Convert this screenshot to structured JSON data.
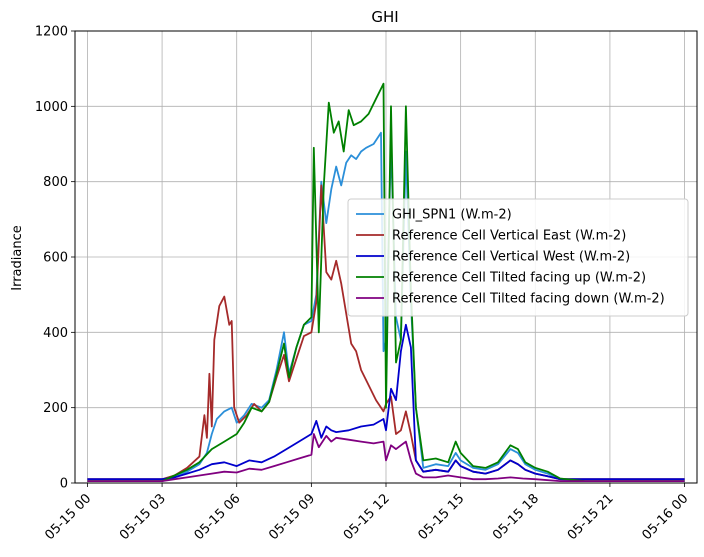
{
  "chart_data": {
    "type": "line",
    "title": "GHI",
    "xlabel": "",
    "ylabel": "Irradiance",
    "x_unit": "hours since 05-15 00:00",
    "xlim": [
      -0.5,
      24.5
    ],
    "ylim": [
      0,
      1200
    ],
    "grid": true,
    "legend_position": "center-right",
    "x_ticks": [
      {
        "value": 0,
        "label": "05-15 00"
      },
      {
        "value": 3,
        "label": "05-15 03"
      },
      {
        "value": 6,
        "label": "05-15 06"
      },
      {
        "value": 9,
        "label": "05-15 09"
      },
      {
        "value": 12,
        "label": "05-15 12"
      },
      {
        "value": 15,
        "label": "05-15 15"
      },
      {
        "value": 18,
        "label": "05-15 18"
      },
      {
        "value": 21,
        "label": "05-15 21"
      },
      {
        "value": 24,
        "label": "05-16 00"
      }
    ],
    "y_ticks": [
      0,
      200,
      400,
      600,
      800,
      1000,
      1200
    ],
    "series": [
      {
        "name": "GHI_SPN1 (W.m-2)",
        "color": "#2b8fd9",
        "points": [
          [
            0,
            5
          ],
          [
            3,
            5
          ],
          [
            3.5,
            15
          ],
          [
            4,
            30
          ],
          [
            4.5,
            50
          ],
          [
            4.8,
            80
          ],
          [
            5,
            130
          ],
          [
            5.2,
            170
          ],
          [
            5.5,
            190
          ],
          [
            5.8,
            200
          ],
          [
            6,
            160
          ],
          [
            6.3,
            180
          ],
          [
            6.6,
            210
          ],
          [
            7,
            200
          ],
          [
            7.3,
            220
          ],
          [
            7.6,
            300
          ],
          [
            7.9,
            400
          ],
          [
            8.1,
            290
          ],
          [
            8.4,
            360
          ],
          [
            8.7,
            420
          ],
          [
            9,
            430
          ],
          [
            9.2,
            500
          ],
          [
            9.4,
            800
          ],
          [
            9.6,
            690
          ],
          [
            9.8,
            780
          ],
          [
            10,
            840
          ],
          [
            10.2,
            790
          ],
          [
            10.4,
            850
          ],
          [
            10.6,
            870
          ],
          [
            10.8,
            860
          ],
          [
            11,
            880
          ],
          [
            11.2,
            890
          ],
          [
            11.5,
            900
          ],
          [
            11.8,
            930
          ],
          [
            11.9,
            350
          ],
          [
            12,
            380
          ],
          [
            12.2,
            900
          ],
          [
            12.4,
            440
          ],
          [
            12.6,
            380
          ],
          [
            12.8,
            880
          ],
          [
            13,
            480
          ],
          [
            13.2,
            200
          ],
          [
            13.5,
            40
          ],
          [
            14,
            50
          ],
          [
            14.5,
            45
          ],
          [
            14.8,
            80
          ],
          [
            15,
            60
          ],
          [
            15.5,
            40
          ],
          [
            16,
            35
          ],
          [
            16.5,
            50
          ],
          [
            17,
            90
          ],
          [
            17.3,
            80
          ],
          [
            17.6,
            50
          ],
          [
            18,
            35
          ],
          [
            18.5,
            25
          ],
          [
            19,
            10
          ],
          [
            20,
            5
          ],
          [
            24,
            5
          ]
        ]
      },
      {
        "name": "Reference Cell Vertical East (W.m-2)",
        "color": "#a52a2a",
        "points": [
          [
            0,
            10
          ],
          [
            3,
            10
          ],
          [
            3.5,
            20
          ],
          [
            4,
            40
          ],
          [
            4.5,
            70
          ],
          [
            4.7,
            180
          ],
          [
            4.8,
            120
          ],
          [
            4.9,
            290
          ],
          [
            5,
            150
          ],
          [
            5.1,
            380
          ],
          [
            5.3,
            470
          ],
          [
            5.5,
            495
          ],
          [
            5.7,
            420
          ],
          [
            5.8,
            430
          ],
          [
            5.9,
            200
          ],
          [
            6.1,
            160
          ],
          [
            6.4,
            180
          ],
          [
            6.7,
            210
          ],
          [
            7,
            190
          ],
          [
            7.3,
            215
          ],
          [
            7.6,
            280
          ],
          [
            7.9,
            340
          ],
          [
            8.1,
            270
          ],
          [
            8.4,
            330
          ],
          [
            8.7,
            390
          ],
          [
            9,
            400
          ],
          [
            9.2,
            480
          ],
          [
            9.4,
            790
          ],
          [
            9.6,
            560
          ],
          [
            9.8,
            540
          ],
          [
            10,
            590
          ],
          [
            10.2,
            530
          ],
          [
            10.4,
            450
          ],
          [
            10.6,
            370
          ],
          [
            10.8,
            350
          ],
          [
            11,
            300
          ],
          [
            11.3,
            260
          ],
          [
            11.6,
            220
          ],
          [
            11.9,
            190
          ],
          [
            12,
            210
          ],
          [
            12.2,
            230
          ],
          [
            12.4,
            130
          ],
          [
            12.6,
            140
          ],
          [
            12.8,
            190
          ],
          [
            13,
            130
          ],
          [
            13.2,
            60
          ],
          [
            13.5,
            30
          ],
          [
            14,
            35
          ],
          [
            14.5,
            30
          ],
          [
            14.8,
            60
          ],
          [
            15,
            45
          ],
          [
            15.5,
            30
          ],
          [
            16,
            25
          ],
          [
            16.5,
            35
          ],
          [
            17,
            60
          ],
          [
            17.3,
            50
          ],
          [
            17.6,
            35
          ],
          [
            18,
            25
          ],
          [
            18.5,
            18
          ],
          [
            19,
            10
          ],
          [
            20,
            10
          ],
          [
            24,
            10
          ]
        ]
      },
      {
        "name": "Reference Cell Vertical West (W.m-2)",
        "color": "#0000cc",
        "points": [
          [
            0,
            10
          ],
          [
            3,
            10
          ],
          [
            3.5,
            15
          ],
          [
            4,
            25
          ],
          [
            4.5,
            35
          ],
          [
            5,
            50
          ],
          [
            5.5,
            55
          ],
          [
            6,
            45
          ],
          [
            6.5,
            60
          ],
          [
            7,
            55
          ],
          [
            7.5,
            70
          ],
          [
            8,
            90
          ],
          [
            8.5,
            110
          ],
          [
            9,
            130
          ],
          [
            9.2,
            165
          ],
          [
            9.4,
            120
          ],
          [
            9.6,
            150
          ],
          [
            9.8,
            140
          ],
          [
            10,
            135
          ],
          [
            10.5,
            140
          ],
          [
            11,
            150
          ],
          [
            11.5,
            155
          ],
          [
            11.9,
            170
          ],
          [
            12,
            140
          ],
          [
            12.2,
            250
          ],
          [
            12.4,
            220
          ],
          [
            12.6,
            350
          ],
          [
            12.8,
            420
          ],
          [
            13,
            360
          ],
          [
            13.2,
            60
          ],
          [
            13.5,
            30
          ],
          [
            14,
            35
          ],
          [
            14.5,
            30
          ],
          [
            14.8,
            60
          ],
          [
            15,
            45
          ],
          [
            15.5,
            30
          ],
          [
            16,
            25
          ],
          [
            16.5,
            35
          ],
          [
            17,
            60
          ],
          [
            17.3,
            50
          ],
          [
            17.6,
            35
          ],
          [
            18,
            25
          ],
          [
            18.5,
            18
          ],
          [
            19,
            10
          ],
          [
            20,
            10
          ],
          [
            24,
            10
          ]
        ]
      },
      {
        "name": "Reference Cell Tilted facing up (W.m-2)",
        "color": "#008000",
        "points": [
          [
            0,
            5
          ],
          [
            3,
            5
          ],
          [
            3.5,
            20
          ],
          [
            4,
            35
          ],
          [
            4.5,
            55
          ],
          [
            5,
            90
          ],
          [
            5.5,
            110
          ],
          [
            6,
            130
          ],
          [
            6.3,
            160
          ],
          [
            6.6,
            200
          ],
          [
            7,
            190
          ],
          [
            7.3,
            215
          ],
          [
            7.6,
            290
          ],
          [
            7.9,
            370
          ],
          [
            8.1,
            280
          ],
          [
            8.4,
            360
          ],
          [
            8.7,
            420
          ],
          [
            9,
            440
          ],
          [
            9.1,
            890
          ],
          [
            9.3,
            400
          ],
          [
            9.5,
            790
          ],
          [
            9.7,
            1010
          ],
          [
            9.9,
            930
          ],
          [
            10.1,
            960
          ],
          [
            10.3,
            880
          ],
          [
            10.5,
            990
          ],
          [
            10.7,
            950
          ],
          [
            11,
            960
          ],
          [
            11.3,
            980
          ],
          [
            11.6,
            1020
          ],
          [
            11.9,
            1060
          ],
          [
            12,
            200
          ],
          [
            12.2,
            1000
          ],
          [
            12.4,
            320
          ],
          [
            12.6,
            380
          ],
          [
            12.8,
            1000
          ],
          [
            13,
            510
          ],
          [
            13.2,
            200
          ],
          [
            13.5,
            60
          ],
          [
            14,
            65
          ],
          [
            14.5,
            55
          ],
          [
            14.8,
            110
          ],
          [
            15,
            80
          ],
          [
            15.5,
            45
          ],
          [
            16,
            40
          ],
          [
            16.5,
            55
          ],
          [
            17,
            100
          ],
          [
            17.3,
            90
          ],
          [
            17.6,
            55
          ],
          [
            18,
            40
          ],
          [
            18.5,
            30
          ],
          [
            19,
            12
          ],
          [
            20,
            5
          ],
          [
            24,
            5
          ]
        ]
      },
      {
        "name": "Reference Cell Tilted facing down (W.m-2)",
        "color": "#800080",
        "points": [
          [
            0,
            5
          ],
          [
            3,
            5
          ],
          [
            3.5,
            10
          ],
          [
            4,
            15
          ],
          [
            4.5,
            20
          ],
          [
            5,
            25
          ],
          [
            5.5,
            30
          ],
          [
            6,
            28
          ],
          [
            6.5,
            38
          ],
          [
            7,
            35
          ],
          [
            7.5,
            45
          ],
          [
            8,
            55
          ],
          [
            8.5,
            65
          ],
          [
            9,
            75
          ],
          [
            9.1,
            130
          ],
          [
            9.3,
            95
          ],
          [
            9.6,
            125
          ],
          [
            9.8,
            110
          ],
          [
            10,
            120
          ],
          [
            10.5,
            115
          ],
          [
            11,
            110
          ],
          [
            11.5,
            105
          ],
          [
            11.9,
            110
          ],
          [
            12,
            60
          ],
          [
            12.2,
            100
          ],
          [
            12.4,
            90
          ],
          [
            12.6,
            100
          ],
          [
            12.8,
            110
          ],
          [
            13,
            60
          ],
          [
            13.2,
            25
          ],
          [
            13.5,
            15
          ],
          [
            14,
            15
          ],
          [
            14.5,
            20
          ],
          [
            15,
            15
          ],
          [
            15.5,
            10
          ],
          [
            16,
            10
          ],
          [
            16.5,
            12
          ],
          [
            17,
            15
          ],
          [
            17.5,
            12
          ],
          [
            18,
            10
          ],
          [
            19,
            5
          ],
          [
            20,
            5
          ],
          [
            24,
            5
          ]
        ]
      }
    ]
  }
}
